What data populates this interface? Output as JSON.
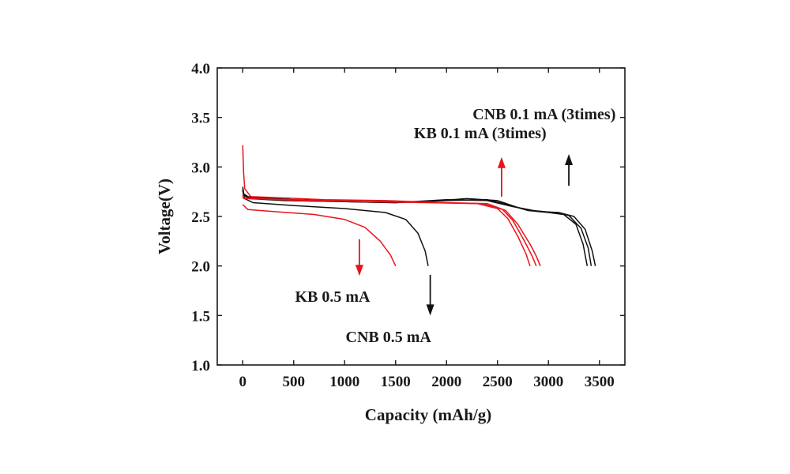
{
  "chart_data": {
    "type": "line",
    "xlabel": "Capacity (mAh/g)",
    "ylabel": "Voltage(V)",
    "xlim": [
      -250,
      3750
    ],
    "ylim": [
      1.0,
      4.0
    ],
    "xticks": [
      0,
      500,
      1000,
      1500,
      2000,
      2500,
      3000,
      3500
    ],
    "yticks": [
      1.0,
      1.5,
      2.0,
      2.5,
      3.0,
      3.5,
      4.0
    ],
    "xtick_labels": [
      "0",
      "500",
      "1000",
      "1500",
      "2000",
      "2500",
      "3000",
      "3500"
    ],
    "ytick_labels": [
      "1.0",
      "1.5",
      "2.0",
      "2.5",
      "3.0",
      "3.5",
      "4.0"
    ],
    "grid": false,
    "legend": "none",
    "colors": {
      "CNB": "#111111",
      "KB": "#e8141b"
    },
    "series": [
      {
        "color": "#111111",
        "points": [
          [
            0,
            2.76
          ],
          [
            20,
            2.68
          ],
          [
            100,
            2.64
          ],
          [
            500,
            2.61
          ],
          [
            1000,
            2.58
          ],
          [
            1400,
            2.54
          ],
          [
            1600,
            2.47
          ],
          [
            1720,
            2.33
          ],
          [
            1790,
            2.15
          ],
          [
            1820,
            2.0
          ]
        ]
      },
      {
        "color": "#e8141b",
        "points": [
          [
            0,
            2.62
          ],
          [
            50,
            2.57
          ],
          [
            300,
            2.55
          ],
          [
            700,
            2.52
          ],
          [
            1000,
            2.47
          ],
          [
            1200,
            2.39
          ],
          [
            1350,
            2.25
          ],
          [
            1450,
            2.11
          ],
          [
            1500,
            2.0
          ]
        ]
      },
      {
        "color": "#111111",
        "points": [
          [
            0,
            2.78
          ],
          [
            10,
            2.72
          ],
          [
            60,
            2.68
          ],
          [
            400,
            2.66
          ],
          [
            1000,
            2.65
          ],
          [
            1500,
            2.64
          ],
          [
            2000,
            2.66
          ],
          [
            2400,
            2.67
          ],
          [
            2600,
            2.62
          ],
          [
            2800,
            2.56
          ],
          [
            3000,
            2.54
          ],
          [
            3150,
            2.52
          ],
          [
            3270,
            2.42
          ],
          [
            3340,
            2.22
          ],
          [
            3380,
            2.0
          ]
        ]
      },
      {
        "color": "#111111",
        "points": [
          [
            0,
            2.77
          ],
          [
            10,
            2.71
          ],
          [
            80,
            2.69
          ],
          [
            500,
            2.66
          ],
          [
            1000,
            2.65
          ],
          [
            1500,
            2.64
          ],
          [
            2000,
            2.67
          ],
          [
            2400,
            2.66
          ],
          [
            2650,
            2.6
          ],
          [
            2850,
            2.56
          ],
          [
            3050,
            2.54
          ],
          [
            3200,
            2.51
          ],
          [
            3320,
            2.38
          ],
          [
            3390,
            2.18
          ],
          [
            3420,
            2.0
          ]
        ]
      },
      {
        "color": "#111111",
        "points": [
          [
            0,
            2.8
          ],
          [
            10,
            2.73
          ],
          [
            50,
            2.7
          ],
          [
            500,
            2.67
          ],
          [
            1200,
            2.65
          ],
          [
            1800,
            2.65
          ],
          [
            2200,
            2.68
          ],
          [
            2500,
            2.66
          ],
          [
            2700,
            2.59
          ],
          [
            2900,
            2.55
          ],
          [
            3100,
            2.54
          ],
          [
            3250,
            2.5
          ],
          [
            3360,
            2.37
          ],
          [
            3430,
            2.15
          ],
          [
            3460,
            2.0
          ]
        ]
      },
      {
        "color": "#e8141b",
        "points": [
          [
            0,
            2.7
          ],
          [
            10,
            2.68
          ],
          [
            100,
            2.68
          ],
          [
            600,
            2.66
          ],
          [
            1200,
            2.65
          ],
          [
            1800,
            2.64
          ],
          [
            2300,
            2.63
          ],
          [
            2500,
            2.58
          ],
          [
            2600,
            2.48
          ],
          [
            2700,
            2.3
          ],
          [
            2780,
            2.12
          ],
          [
            2820,
            2.0
          ]
        ]
      },
      {
        "color": "#e8141b",
        "points": [
          [
            0,
            2.72
          ],
          [
            10,
            2.69
          ],
          [
            150,
            2.68
          ],
          [
            700,
            2.66
          ],
          [
            1300,
            2.65
          ],
          [
            1900,
            2.64
          ],
          [
            2350,
            2.63
          ],
          [
            2550,
            2.57
          ],
          [
            2650,
            2.46
          ],
          [
            2760,
            2.26
          ],
          [
            2840,
            2.1
          ],
          [
            2880,
            2.0
          ]
        ]
      },
      {
        "color": "#e8141b",
        "points": [
          [
            0,
            3.22
          ],
          [
            8,
            2.95
          ],
          [
            20,
            2.78
          ],
          [
            80,
            2.7
          ],
          [
            800,
            2.67
          ],
          [
            1400,
            2.66
          ],
          [
            2000,
            2.64
          ],
          [
            2400,
            2.63
          ],
          [
            2580,
            2.56
          ],
          [
            2700,
            2.42
          ],
          [
            2820,
            2.22
          ],
          [
            2880,
            2.1
          ],
          [
            2920,
            2.0
          ]
        ]
      }
    ],
    "annotations": [
      {
        "text": "CNB 0.1 mA (3times)",
        "x": 3660,
        "y": 3.48,
        "anchor": "end"
      },
      {
        "text": "KB 0.1 mA (3times)",
        "x": 2980,
        "y": 3.29,
        "anchor": "end"
      },
      {
        "text": "KB 0.5 mA",
        "x": 1250,
        "y": 1.64,
        "anchor": "end"
      },
      {
        "text": "CNB 0.5 mA",
        "x": 1850,
        "y": 1.23,
        "anchor": "end"
      }
    ],
    "arrows": [
      {
        "x": 3200,
        "y_from": 2.81,
        "y_to": 3.13,
        "color": "#111111"
      },
      {
        "x": 2540,
        "y_from": 2.7,
        "y_to": 3.1,
        "color": "#e8141b"
      },
      {
        "x": 1145,
        "y_from": 2.27,
        "y_to": 1.9,
        "color": "#e8141b"
      },
      {
        "x": 1840,
        "y_from": 1.91,
        "y_to": 1.5,
        "color": "#111111"
      }
    ]
  }
}
